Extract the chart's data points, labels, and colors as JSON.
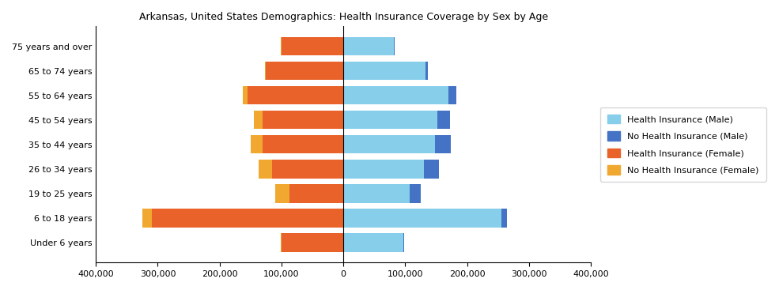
{
  "title": "Arkansas, United States Demographics: Health Insurance Coverage by Sex by Age",
  "age_groups": [
    "Under 6 years",
    "6 to 18 years",
    "19 to 25 years",
    "26 to 34 years",
    "35 to 44 years",
    "45 to 54 years",
    "55 to 64 years",
    "65 to 74 years",
    "75 years and over"
  ],
  "male_insured": [
    97000,
    255000,
    107000,
    130000,
    148000,
    152000,
    170000,
    133000,
    82000
  ],
  "male_uninsured": [
    1000,
    10000,
    18000,
    25000,
    25000,
    20000,
    12000,
    3000,
    1000
  ],
  "female_insured": [
    100000,
    310000,
    87000,
    115000,
    130000,
    130000,
    155000,
    125000,
    100000
  ],
  "female_uninsured": [
    1000,
    15000,
    23000,
    22000,
    20000,
    15000,
    8000,
    2000,
    1000
  ],
  "colors": {
    "male_insured": "#87CEEB",
    "male_uninsured": "#4472C4",
    "female_insured": "#E8622A",
    "female_uninsured": "#F0A830"
  },
  "legend_labels": [
    "Health Insurance (Male)",
    "No Health Insurance (Male)",
    "Health Insurance (Female)",
    "No Health Insurance (Female)"
  ],
  "xlim": 400000,
  "tick_step": 100000,
  "figsize": [
    9.85,
    3.67
  ],
  "dpi": 100,
  "bar_height": 0.75,
  "title_fontsize": 9,
  "tick_fontsize": 8,
  "legend_fontsize": 8
}
